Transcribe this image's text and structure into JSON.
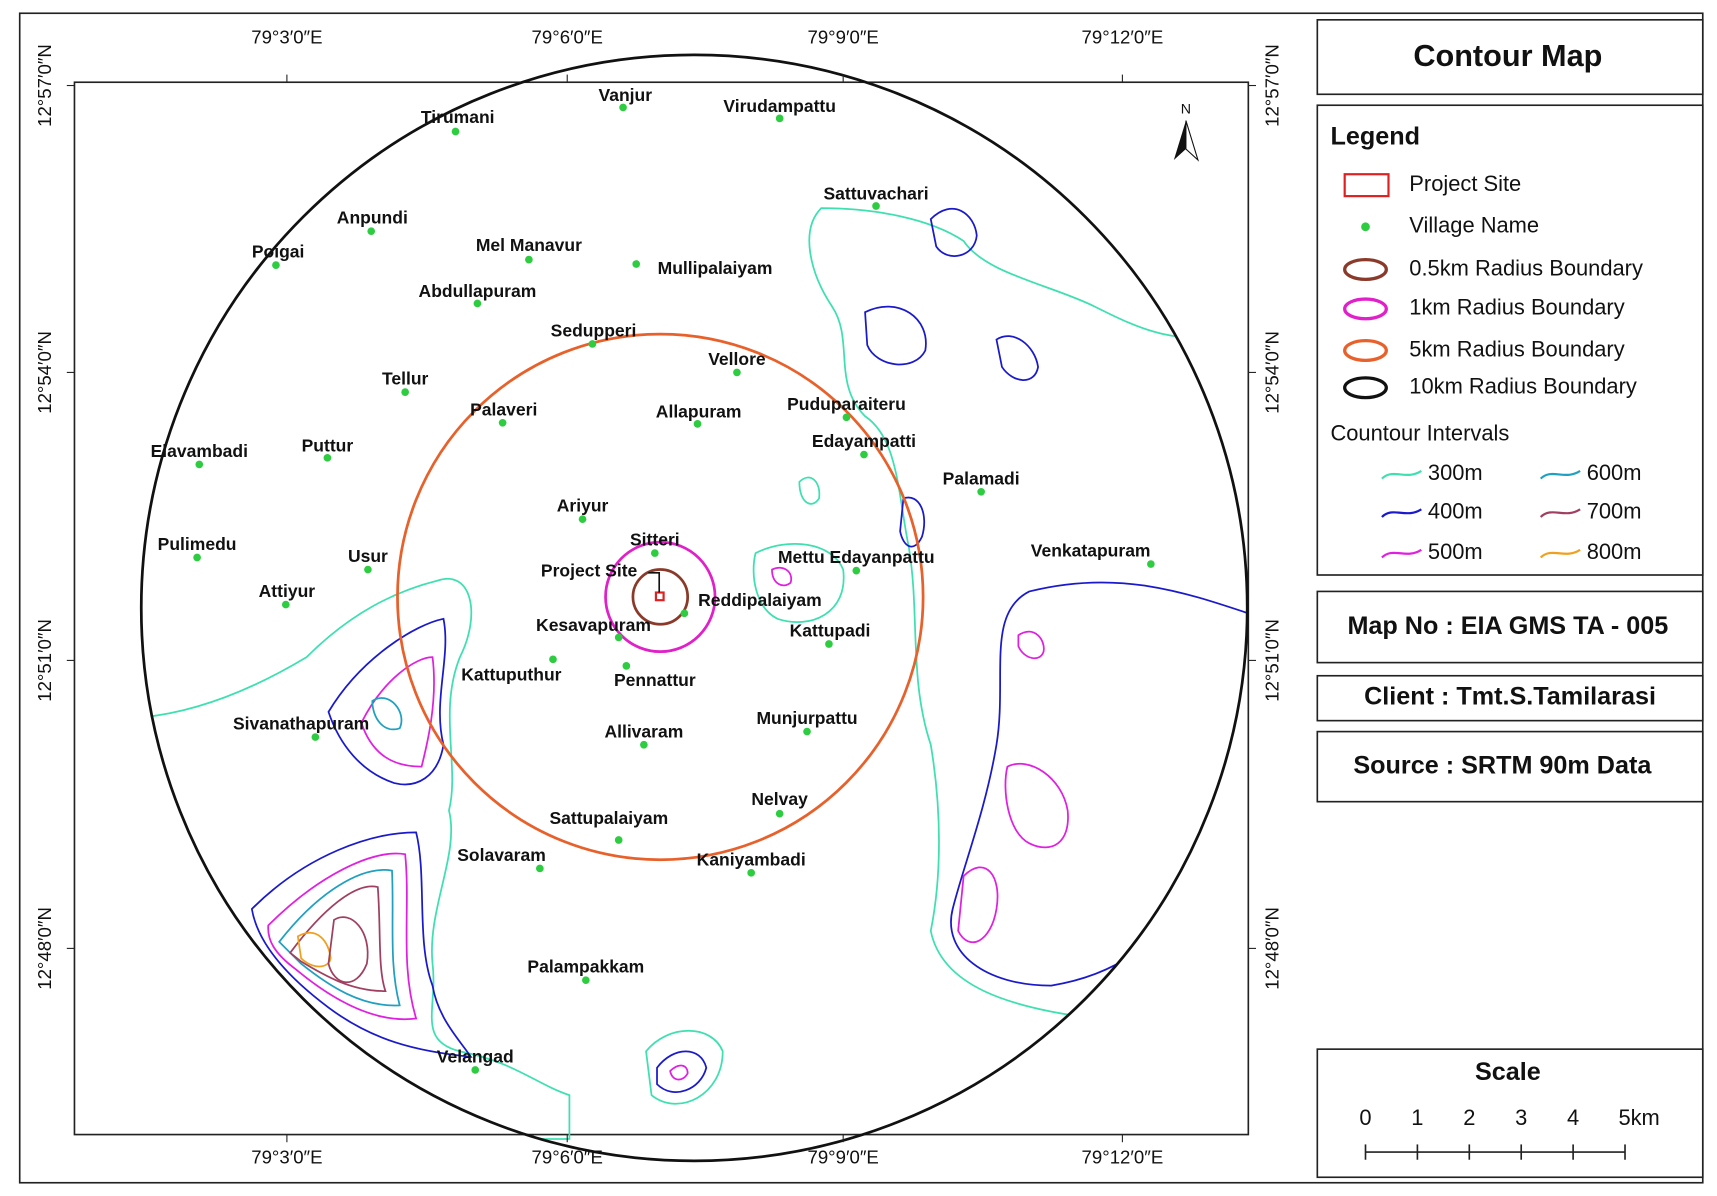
{
  "map": {
    "lon_labels": [
      "79°3′0″E",
      "79°6′0″E",
      "79°9′0″E",
      "79°12′0″E"
    ],
    "lat_labels": [
      "12°57′0″N",
      "12°54′0″N",
      "12°51′0″N",
      "12°48′0″N"
    ],
    "north": "N",
    "project_site_label": "Project Site",
    "villages": [
      "Vanjur",
      "Virudampattu",
      "Tirumani",
      "Sattuvachari",
      "Anpundi",
      "Poigai",
      "Mel Manavur",
      "Mullipalaiyam",
      "Abdullapuram",
      "Sedupperi",
      "Vellore",
      "Tellur",
      "Palaveri",
      "Allapuram",
      "Puduparaiteru",
      "Elavambadi",
      "Puttur",
      "Edayampatti",
      "Palamadi",
      "Ariyur",
      "Sitteri",
      "Pulimedu",
      "Usur",
      "Mettu Edayanpattu",
      "Venkatapuram",
      "Attiyur",
      "Reddipalaiyam",
      "Kesavapuram",
      "Kattupadi",
      "Kattuputhur",
      "Pennattur",
      "Munjurpattu",
      "Sivanathapuram",
      "Allivaram",
      "Nelvay",
      "Sattupalaiyam",
      "Solavaram",
      "Kaniyambadi",
      "Palampakkam",
      "Velangad"
    ]
  },
  "panel": {
    "title": "Contour Map",
    "legend": {
      "title": "Legend",
      "items": [
        {
          "label": "Project Site",
          "color": "#e02020"
        },
        {
          "label": "Village Name",
          "color": "#2ecc40"
        },
        {
          "label": "0.5km Radius Boundary",
          "color": "#8b3a2a"
        },
        {
          "label": "1km Radius Boundary",
          "color": "#e020c8"
        },
        {
          "label": "5km Radius Boundary",
          "color": "#e8602a"
        },
        {
          "label": "10km Radius Boundary",
          "color": "#111111"
        }
      ],
      "contour_title": "Countour Intervals",
      "contours": [
        {
          "label": "300m",
          "color": "#3ee0b0"
        },
        {
          "label": "400m",
          "color": "#1a1acc"
        },
        {
          "label": "500m",
          "color": "#e020e0"
        },
        {
          "label": "600m",
          "color": "#20a0c0"
        },
        {
          "label": "700m",
          "color": "#a04060"
        },
        {
          "label": "800m",
          "color": "#f0a020"
        }
      ]
    },
    "map_no": "Map No : EIA GMS TA - 005",
    "client": "Client  : Tmt.S.Tamilarasi",
    "source": "Source : SRTM 90m Data",
    "scale": {
      "title": "Scale",
      "labels": [
        "0",
        "1",
        "2",
        "3",
        "4",
        "5km"
      ]
    }
  }
}
